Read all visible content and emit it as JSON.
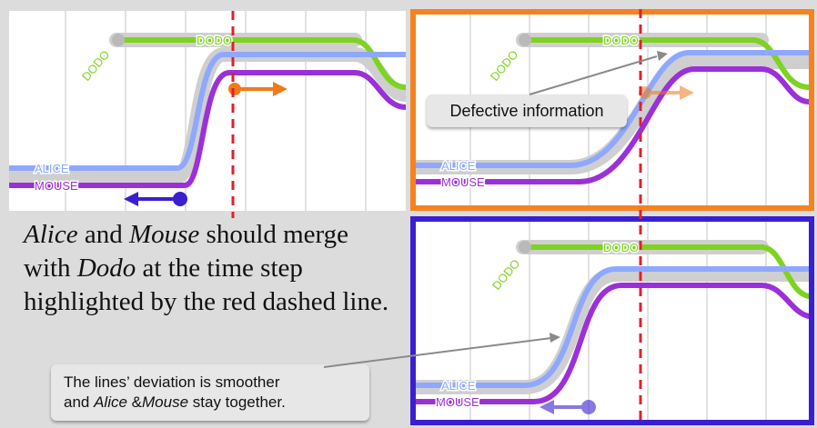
{
  "labels": {
    "dodo": "DODO",
    "alice": "ALICE",
    "mouse": "MOUSE"
  },
  "caption": {
    "name_a": "Alice",
    "t1": " and ",
    "name_b": "Mouse",
    "t2": " should merge with ",
    "name_c": "Dodo",
    "t3": " at the time step highlighted by the red dashed line."
  },
  "callouts": {
    "defective": "Defective information",
    "smoother_line1": "The lines’ deviation is smoother",
    "smoother_and": "and ",
    "smoother_alice": "Alice",
    "smoother_amp": " &",
    "smoother_mouse": "Mouse",
    "smoother_end": " stay together."
  },
  "colors": {
    "dodo": "#7ed321",
    "alice": "#8ea8ff",
    "mouse": "#9b30d8",
    "halo": "#cfcfcf",
    "time_marker": "#e0202a",
    "orange_arrow": "#f07a1a",
    "blue_arrow": "#3a1fd0",
    "panel_bad_border": "#f58220",
    "panel_good_border": "#3a1fd0"
  }
}
